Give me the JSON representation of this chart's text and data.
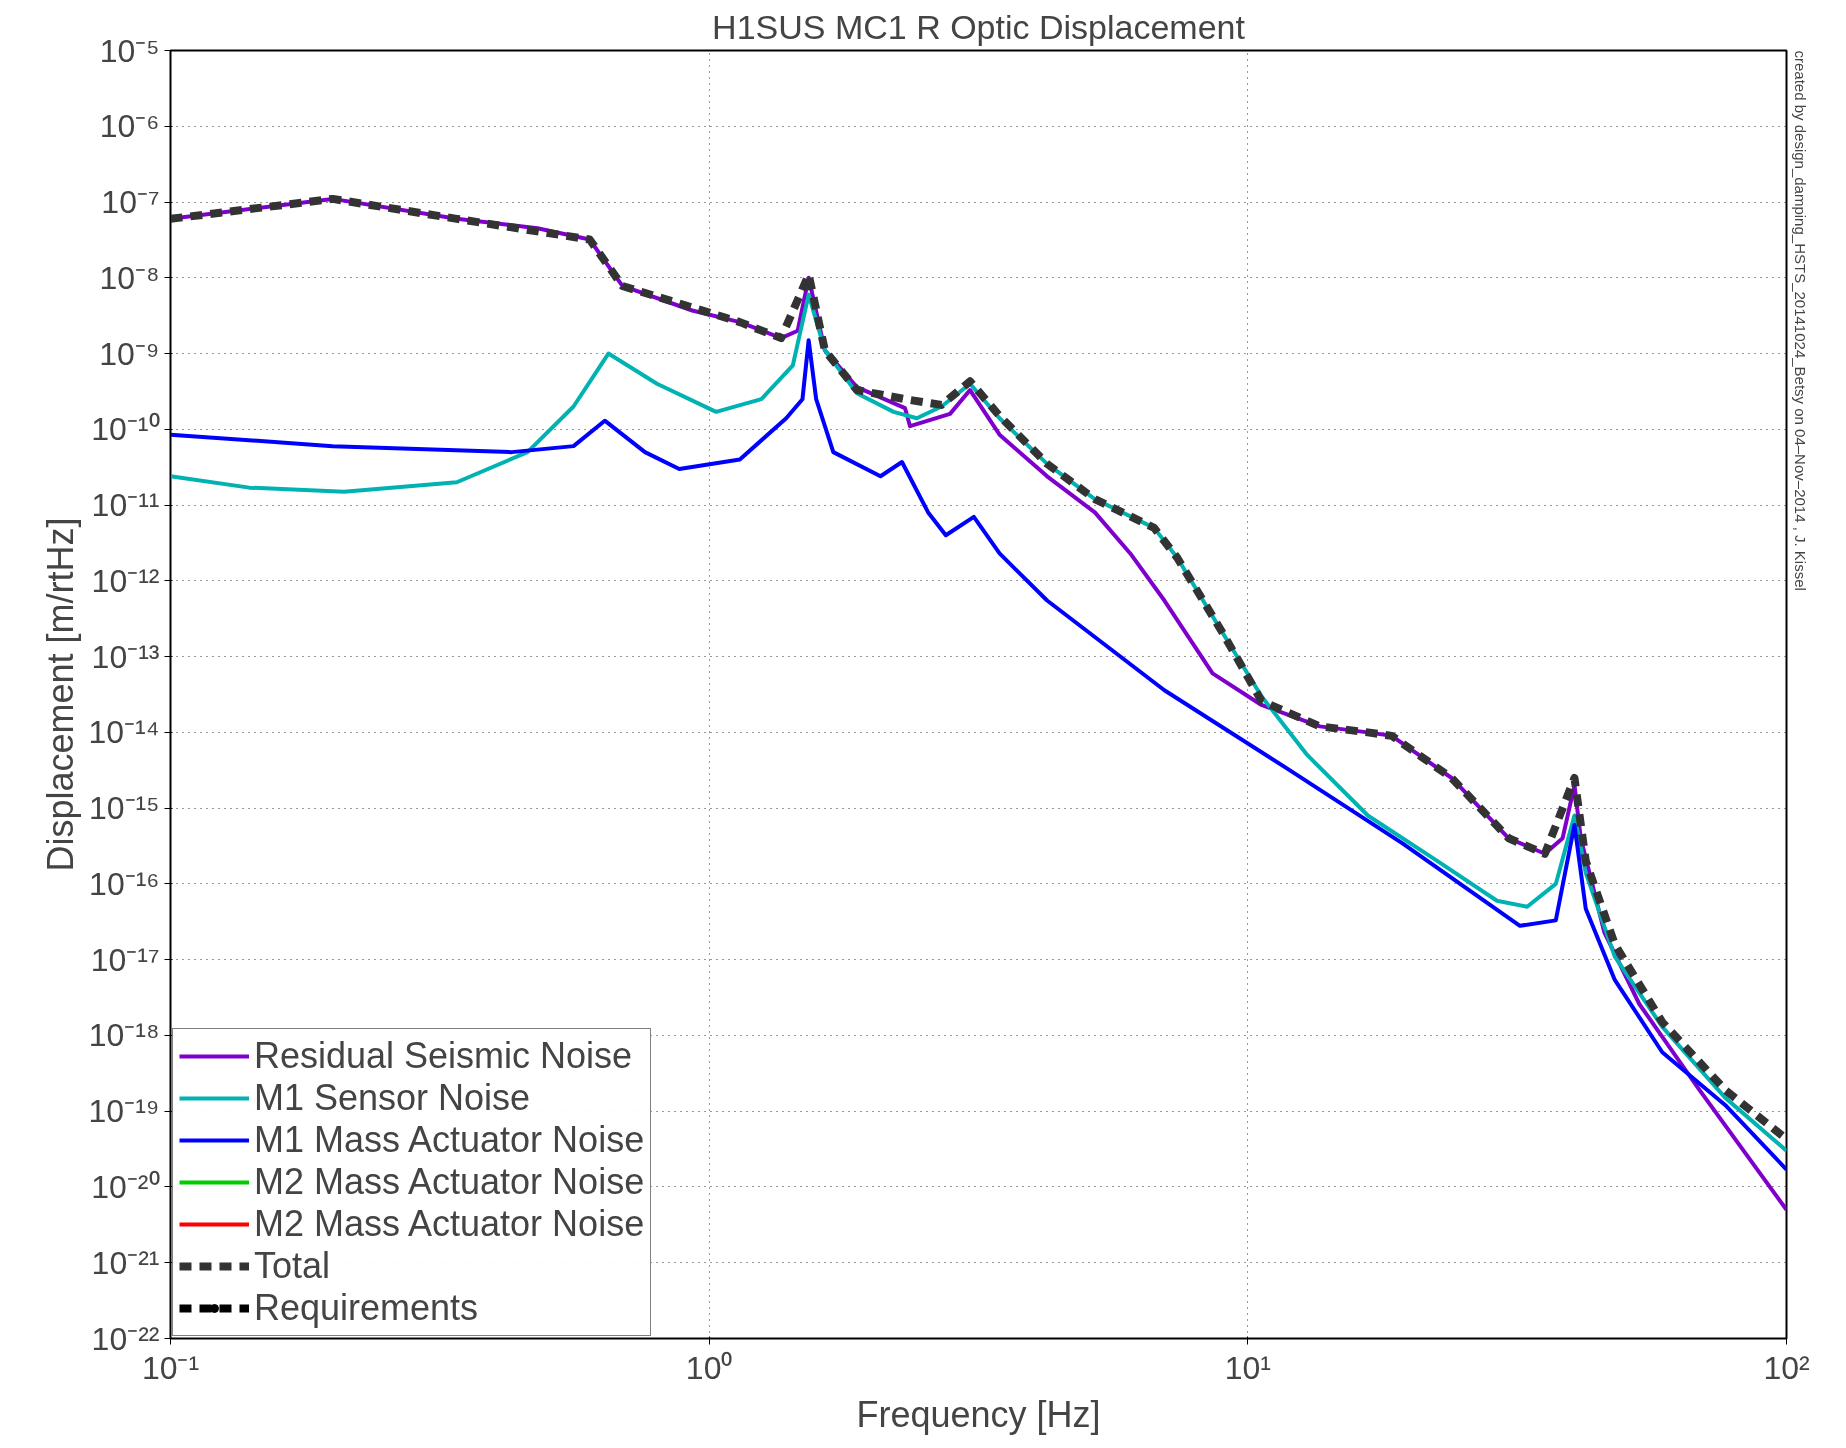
{
  "chart_data": {
    "type": "line",
    "title": "H1SUS MC1 R Optic Displacement",
    "xlabel": "Frequency [Hz]",
    "ylabel": "Displacement [m/rtHz]",
    "log": "xy",
    "grid": true,
    "legend": "bottom left",
    "line_style": "solid",
    "marker": "none",
    "xlim": [
      0.1,
      100
    ],
    "ylim": [
      1e-22,
      1e-05
    ],
    "xticks": [
      {
        "value": 0.1,
        "label": "10⁻¹"
      },
      {
        "value": 1,
        "label": "10⁰"
      },
      {
        "value": 10,
        "label": "10¹"
      },
      {
        "value": 100,
        "label": "10²"
      }
    ],
    "yticks": [
      {
        "value": 1e-22,
        "label": "10⁻²²"
      },
      {
        "value": 1e-21,
        "label": "10⁻²¹"
      },
      {
        "value": 1e-20,
        "label": "10⁻²⁰"
      },
      {
        "value": 1e-19,
        "label": "10⁻¹⁹"
      },
      {
        "value": 1e-18,
        "label": "10⁻¹⁸"
      },
      {
        "value": 1e-17,
        "label": "10⁻¹⁷"
      },
      {
        "value": 1e-16,
        "label": "10⁻¹⁶"
      },
      {
        "value": 1e-15,
        "label": "10⁻¹⁵"
      },
      {
        "value": 1e-14,
        "label": "10⁻¹⁴"
      },
      {
        "value": 1e-13,
        "label": "10⁻¹³"
      },
      {
        "value": 1e-12,
        "label": "10⁻¹²"
      },
      {
        "value": 1e-11,
        "label": "10⁻¹¹"
      },
      {
        "value": 1e-10,
        "label": "10⁻¹⁰"
      },
      {
        "value": 1e-09,
        "label": "10⁻⁹"
      },
      {
        "value": 1e-08,
        "label": "10⁻⁸"
      },
      {
        "value": 1e-07,
        "label": "10⁻⁷"
      },
      {
        "value": 1e-06,
        "label": "10⁻⁶"
      },
      {
        "value": 1e-05,
        "label": "10⁻⁵"
      }
    ],
    "annotations": [
      "created by design_damping_HSTS_20141024_Betsy on 04–Nov–2014 , J. Kissel"
    ],
    "series": [
      {
        "name": "Residual Seismic Noise",
        "color": "#7f00cc",
        "x": [
          0.1,
          0.2,
          0.34,
          0.48,
          0.6,
          0.69,
          0.93,
          1.14,
          1.36,
          1.46,
          1.53,
          1.64,
          1.88,
          2.31,
          2.36,
          2.8,
          3.05,
          3.46,
          4.24,
          5.2,
          6.05,
          7.0,
          8.6,
          10.6,
          13.6,
          16.7,
          18.5,
          23.9,
          30.5,
          35.6,
          38.4,
          40.4,
          41.5,
          45.9,
          53.3,
          68.6,
          100
        ],
        "values": [
          6e-08,
          1.1e-07,
          6e-08,
          4.5e-08,
          3.2e-08,
          7.8e-09,
          3.7e-09,
          2.6e-09,
          1.6e-09,
          2e-09,
          1e-08,
          1.1e-09,
          3.6e-10,
          1.9e-10,
          1.1e-10,
          1.6e-10,
          3.3e-10,
          8.5e-11,
          2.4e-11,
          8e-12,
          2.3e-12,
          5.5e-13,
          6e-14,
          2.3e-14,
          1.2e-14,
          1e-14,
          9e-15,
          2.5e-15,
          4e-16,
          2.5e-16,
          4e-16,
          2e-15,
          4e-16,
          2.3e-17,
          2.6e-18,
          2e-19,
          5e-21
        ]
      },
      {
        "name": "M1 Sensor Noise",
        "color": "#00b2b2",
        "x": [
          0.1,
          0.14,
          0.21,
          0.34,
          0.46,
          0.56,
          0.65,
          0.8,
          1.03,
          1.25,
          1.43,
          1.53,
          1.64,
          1.88,
          2.2,
          2.43,
          2.7,
          3.05,
          3.46,
          4.24,
          5.2,
          6.7,
          7.4,
          9.0,
          10.6,
          12.9,
          16.7,
          22.5,
          29,
          33,
          37.3,
          40.4,
          42.4,
          48,
          58.8,
          77,
          100
        ],
        "values": [
          2.4e-11,
          1.7e-11,
          1.5e-11,
          2e-11,
          5e-11,
          2e-10,
          1e-09,
          4e-10,
          1.7e-10,
          2.5e-10,
          7e-10,
          6e-09,
          1.1e-09,
          3e-10,
          1.7e-10,
          1.4e-10,
          2e-10,
          4e-10,
          1.4e-10,
          3.5e-11,
          1.2e-11,
          5e-12,
          2e-12,
          2e-13,
          3e-14,
          5e-15,
          8e-16,
          2e-16,
          6e-17,
          5e-17,
          1e-16,
          8e-16,
          1.4e-16,
          1.1e-17,
          1.3e-18,
          1.5e-19,
          3e-20
        ]
      },
      {
        "name": "M1 Mass Actuator Noise",
        "color": "#0000ff",
        "x": [
          0.1,
          0.2,
          0.43,
          0.56,
          0.64,
          0.76,
          0.88,
          1.14,
          1.39,
          1.49,
          1.53,
          1.58,
          1.7,
          2.08,
          2.28,
          2.55,
          2.75,
          3.1,
          3.46,
          4.24,
          7.0,
          11.7,
          19.4,
          32,
          37.3,
          40.4,
          42.4,
          48,
          58.8,
          77,
          100
        ],
        "values": [
          8.5e-11,
          6e-11,
          5e-11,
          6e-11,
          1.3e-10,
          5e-11,
          3e-11,
          4e-11,
          1.4e-10,
          2.5e-10,
          1.5e-09,
          2.5e-10,
          5e-11,
          2.4e-11,
          3.7e-11,
          8e-12,
          4e-12,
          7e-12,
          2.3e-12,
          5.5e-13,
          3.6e-14,
          3.5e-15,
          3.4e-16,
          2.8e-17,
          3.3e-17,
          6e-16,
          4.7e-17,
          5.4e-18,
          6e-19,
          1.2e-19,
          1.7e-20
        ]
      },
      {
        "name": "M2 Mass Actuator Noise",
        "color": "#00cc00"
      },
      {
        "name": "M2 Mass Actuator Noise",
        "color": "#ff0000"
      },
      {
        "name": "Total",
        "color": "#333333",
        "line_style": "dashed",
        "x": [
          0.1,
          0.2,
          0.34,
          0.6,
          0.69,
          1.14,
          1.36,
          1.53,
          1.64,
          1.88,
          2.31,
          2.7,
          3.05,
          3.46,
          4.24,
          5.2,
          6.7,
          7.4,
          9.0,
          10.6,
          13.6,
          16.7,
          18.5,
          23.9,
          30.5,
          35.6,
          40.4,
          42.4,
          48,
          58.8,
          77,
          100
        ],
        "values": [
          6e-08,
          1.1e-07,
          6e-08,
          3.2e-08,
          7.8e-09,
          2.6e-09,
          1.6e-09,
          1.1e-08,
          1.1e-09,
          3.3e-10,
          2.5e-10,
          2.1e-10,
          4.3e-10,
          1.5e-10,
          3.5e-11,
          1.2e-11,
          5e-12,
          2e-12,
          2e-13,
          2.6e-14,
          1.2e-14,
          1e-14,
          9e-15,
          2.5e-15,
          4e-16,
          2.5e-16,
          2.5e-15,
          2e-16,
          1.6e-17,
          1.5e-18,
          1.9e-19,
          4.3e-20
        ]
      },
      {
        "name": "Requirements",
        "color": "#000000",
        "line_style": "dashed",
        "marker": "circle"
      }
    ]
  }
}
